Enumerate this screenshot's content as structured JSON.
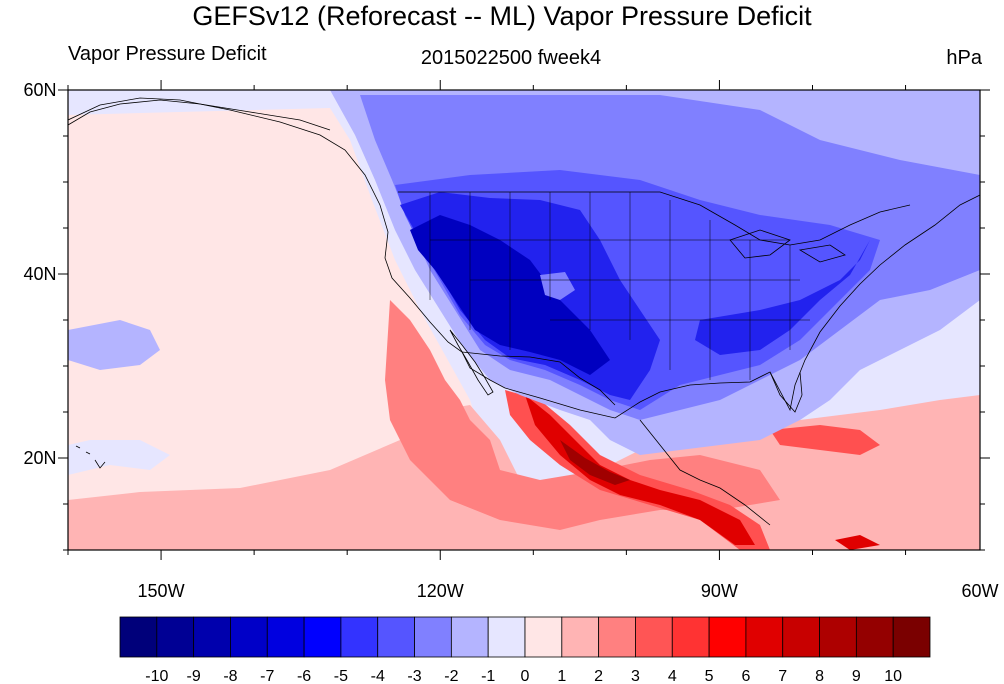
{
  "title": "GEFSv12 (Reforecast -- ML) Vapor Pressure Deficit",
  "subtitle_left": "Vapor Pressure Deficit",
  "subtitle_center": "2015022500 fweek4",
  "subtitle_right": "hPa",
  "lat_labels": [
    "60N",
    "40N",
    "20N"
  ],
  "lon_labels": [
    "150W",
    "120W",
    "90W",
    "60W"
  ],
  "colorbar": {
    "labels": [
      "-10",
      "-9",
      "-8",
      "-7",
      "-6",
      "-5",
      "-4",
      "-3",
      "-2",
      "-1",
      "0",
      "1",
      "2",
      "3",
      "4",
      "5",
      "6",
      "7",
      "8",
      "9",
      "10"
    ],
    "colors": [
      "#00007a",
      "#000094",
      "#0000ad",
      "#0000c8",
      "#0000e0",
      "#0000ff",
      "#3333ff",
      "#5555ff",
      "#8080ff",
      "#b4b4ff",
      "#e6e6ff",
      "#ffe6e6",
      "#ffb4b4",
      "#ff8080",
      "#ff5555",
      "#ff3333",
      "#ff0000",
      "#e00000",
      "#c80000",
      "#ad0000",
      "#940000",
      "#7a0000"
    ]
  },
  "map": {
    "extent": {
      "lon": [
        -160,
        -62
      ],
      "lat": [
        10,
        60
      ]
    },
    "palette": {
      "pale_blue": "#e6e6ff",
      "light_blue": "#b4b4ff",
      "mid_blue": "#8080ff",
      "blue": "#5555ff",
      "dark_blue": "#2222ee",
      "deep_blue": "#0000c0",
      "pale_red": "#ffe6e6",
      "light_red": "#ffb4b4",
      "mid_red": "#ff8080",
      "red": "#ff5050",
      "dark_red": "#e00000",
      "deep_red": "#a00000"
    }
  }
}
